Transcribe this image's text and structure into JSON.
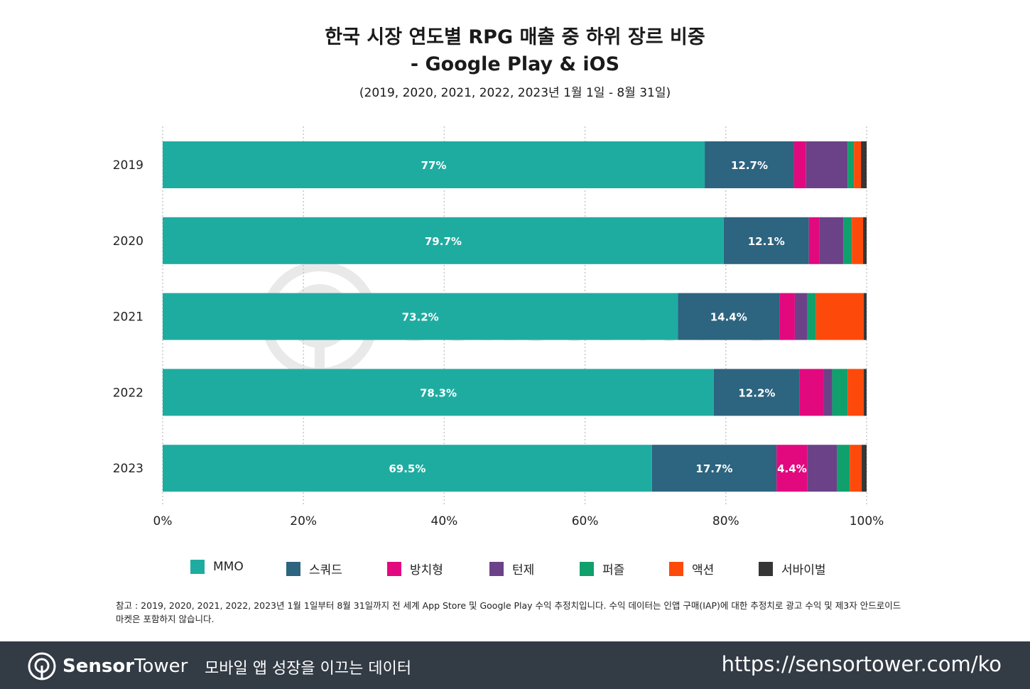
{
  "header": {
    "title_line1": "한국 시장 연도별 RPG 매출 중 하위 장르 비중",
    "title_line2": "- Google Play & iOS",
    "subtitle": "(2019, 2020, 2021, 2022, 2023년 1월 1일 - 8월 31일)"
  },
  "chart_data": {
    "type": "bar",
    "orientation": "horizontal",
    "stacked": true,
    "title": "한국 시장 연도별 RPG 매출 중 하위 장르 비중 - Google Play & iOS",
    "subtitle": "(2019, 2020, 2021, 2022, 2023년 1월 1일 - 8월 31일)",
    "categories": [
      "2019",
      "2020",
      "2021",
      "2022",
      "2023"
    ],
    "xlim": [
      0,
      100
    ],
    "x_ticks": [
      "0%",
      "20%",
      "40%",
      "60%",
      "80%",
      "100%"
    ],
    "grid": "vertical-dotted",
    "legend_position": "bottom",
    "series": [
      {
        "name": "MMO",
        "color": "#1faca0",
        "values": [
          77,
          79.7,
          73.2,
          78.3,
          69.5
        ],
        "labels": [
          "77%",
          "79.7%",
          "73.2%",
          "78.3%",
          "69.5%"
        ]
      },
      {
        "name": "스쿼드",
        "color": "#2d6480",
        "values": [
          12.7,
          12.1,
          14.4,
          12.2,
          17.7
        ],
        "labels": [
          "12.7%",
          "12.1%",
          "14.4%",
          "12.2%",
          "17.7%"
        ]
      },
      {
        "name": "방치형",
        "color": "#e2097f",
        "values": [
          1.7,
          1.5,
          2.2,
          3.4,
          4.4
        ],
        "labels": [
          null,
          null,
          null,
          null,
          "4.4%"
        ]
      },
      {
        "name": "턴제",
        "color": "#6b4288",
        "values": [
          5.9,
          3.4,
          1.8,
          1.2,
          4.2
        ],
        "labels": [
          null,
          null,
          null,
          null,
          null
        ]
      },
      {
        "name": "퍼즐",
        "color": "#10a06c",
        "values": [
          0.9,
          1.2,
          1.2,
          2.2,
          1.8
        ],
        "labels": [
          null,
          null,
          null,
          null,
          null
        ]
      },
      {
        "name": "액션",
        "color": "#fd4a0b",
        "values": [
          1.0,
          1.6,
          6.8,
          2.3,
          1.7
        ],
        "labels": [
          null,
          null,
          null,
          null,
          null
        ]
      },
      {
        "name": "서바이벌",
        "color": "#363636",
        "values": [
          0.8,
          0.5,
          0.4,
          0.4,
          0.7
        ],
        "labels": [
          null,
          null,
          null,
          null,
          null
        ]
      }
    ]
  },
  "note": {
    "line1": "참고 : 2019, 2020, 2021, 2022, 2023년 1월 1일부터 8월 31일까지 전 세계 App Store 및 Google Play 수익 추정치입니다. 수익 데이터는 인앱 구매(IAP)에 대한 추정치로 광고 수익 및 제3자 안드로이드",
    "line2": "마켓은 포함하지 않습니다."
  },
  "watermark": "SensorTower",
  "footer": {
    "brand_bold": "Sensor",
    "brand_light": "Tower",
    "tagline": "모바일 앱 성장을 이끄는 데이터",
    "url": "https://sensortower.com/ko",
    "background": "#333b45"
  }
}
